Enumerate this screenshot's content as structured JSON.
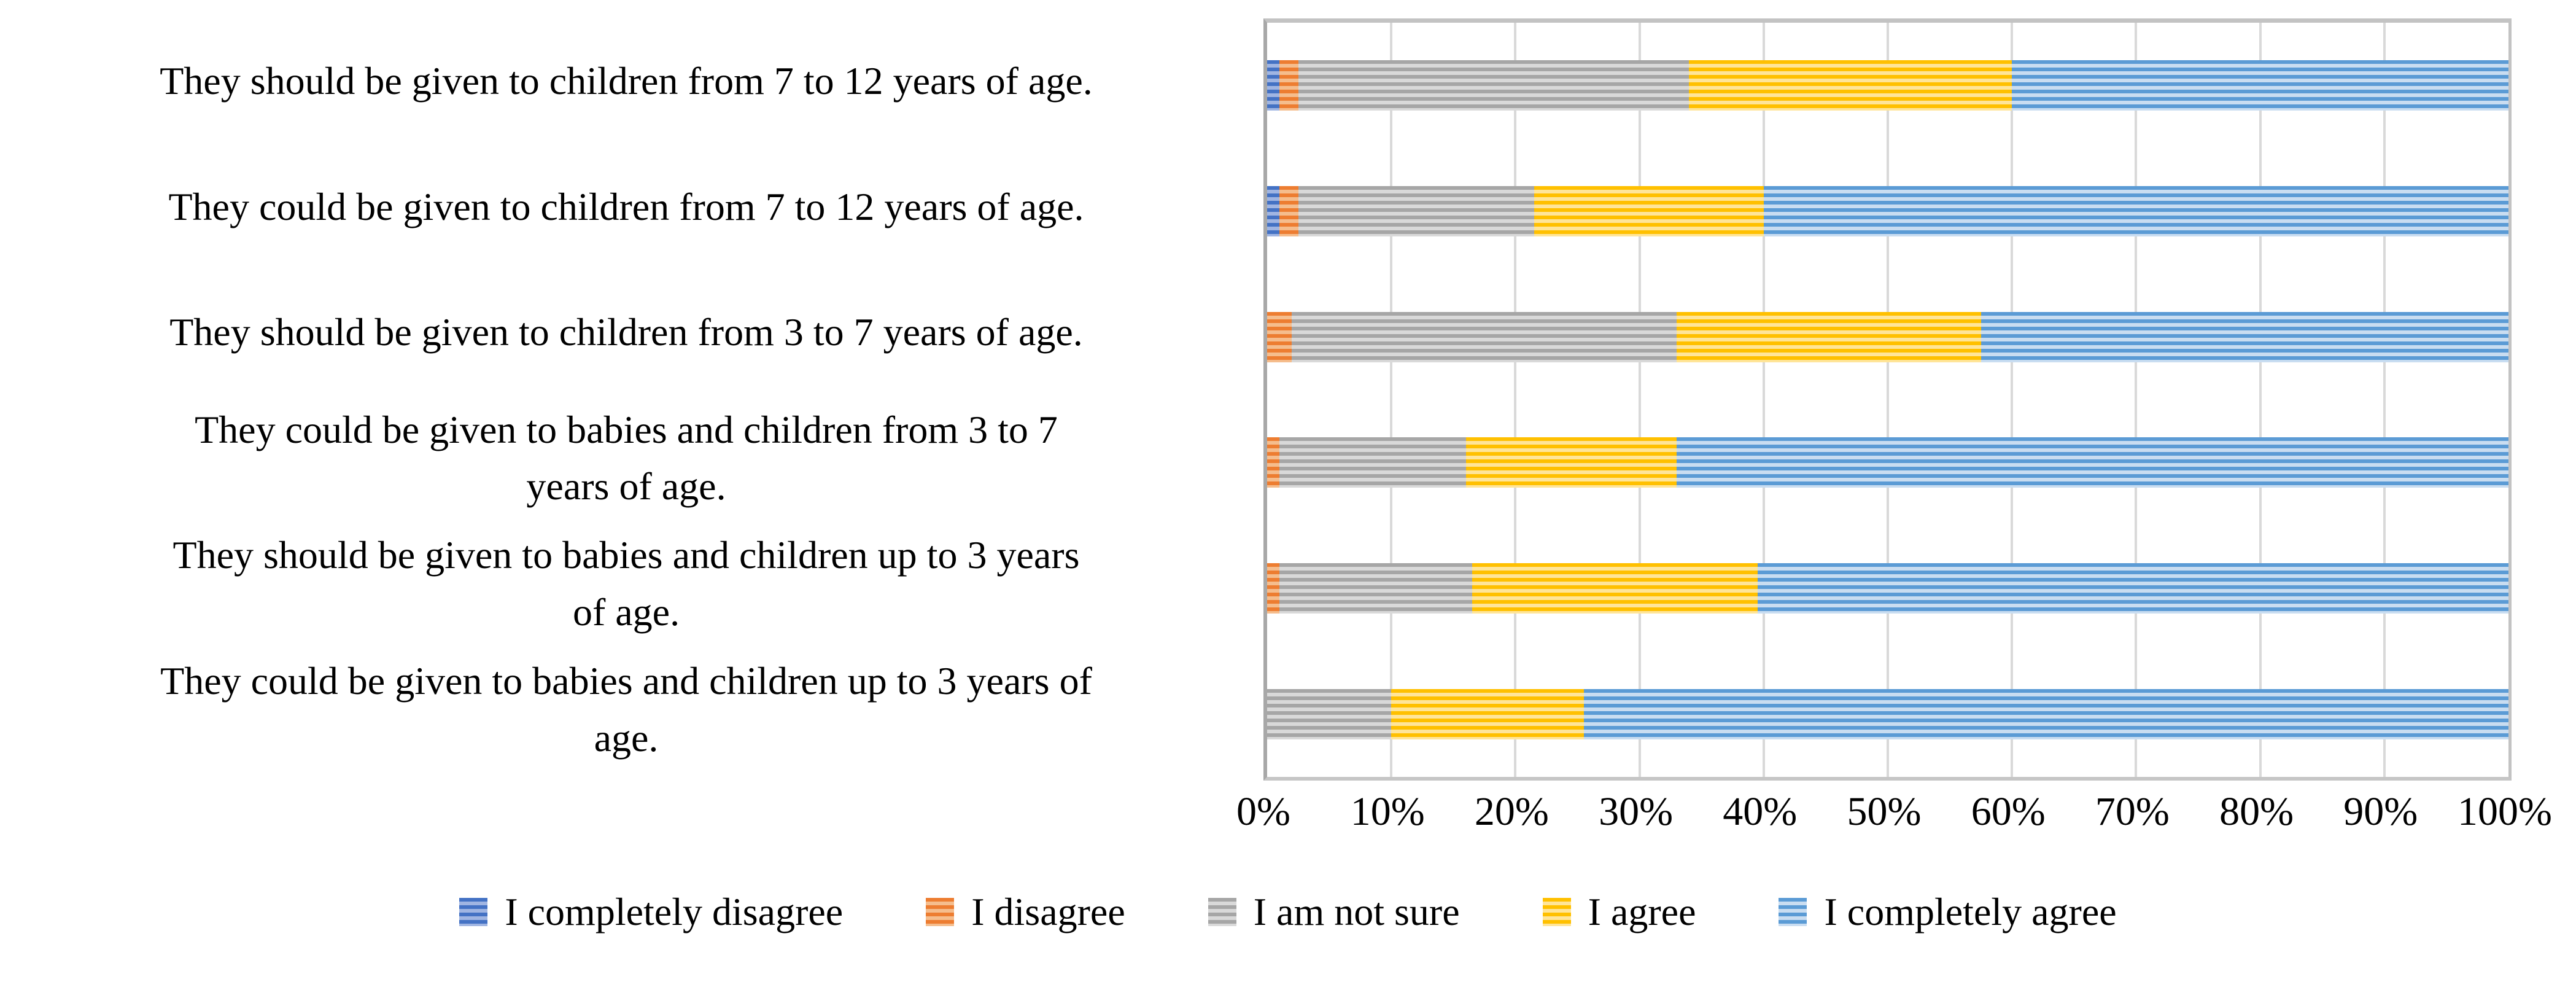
{
  "chart_data": {
    "type": "bar",
    "orientation": "horizontal",
    "stacked": true,
    "stacked_to": 100,
    "title": "",
    "xlabel": "",
    "ylabel": "",
    "xlim": [
      0,
      100
    ],
    "grid": true,
    "legend_position": "bottom",
    "x_tick_labels": [
      "0%",
      "10%",
      "20%",
      "30%",
      "40%",
      "50%",
      "60%",
      "70%",
      "80%",
      "90%",
      "100%"
    ],
    "categories": [
      "They should be given to children from 7 to 12 years of age.",
      "They could be given to children from 7 to 12 years of age.",
      "They should be given to children from 3 to 7 years of age.",
      "They could be given to babies and children from 3 to 7 years of age.",
      "They should be given to babies and children up to 3 years of age.",
      "They could be given to babies and children up to 3 years of age."
    ],
    "category_display_lines": [
      "They should be given to children from 7 to 12 years of age.",
      "They could be given to children from 7 to 12 years of age.",
      "They should be given to children from 3 to 7 years of age.",
      "They could be given to babies and children from 3 to 7\nyears of age.",
      "They should be given to babies and children up to 3 years\nof age.",
      "They could be given to babies and children up to 3 years of\nage."
    ],
    "series": [
      {
        "name": "I completely disagree",
        "color": "#4472C4",
        "color_light": "#A0B5E2",
        "values": [
          1,
          1,
          0,
          0,
          0,
          0
        ]
      },
      {
        "name": "I disagree",
        "color": "#ED7D31",
        "color_light": "#F5BD8D",
        "values": [
          1.5,
          1.5,
          2,
          1,
          1,
          0
        ]
      },
      {
        "name": "I am not sure",
        "color": "#A6A6A6",
        "color_light": "#D9D9D9",
        "values": [
          31.5,
          19,
          31,
          15,
          15.5,
          10
        ]
      },
      {
        "name": "I agree",
        "color": "#FFC000",
        "color_light": "#FFE599",
        "values": [
          26,
          18.5,
          24.5,
          17,
          23,
          15.5
        ]
      },
      {
        "name": "I completely agree",
        "color": "#5B9BD5",
        "color_light": "#C9DDF1",
        "values": [
          40,
          60,
          42.5,
          67,
          60.5,
          74.5
        ]
      }
    ],
    "bar_texture": "horizontal-stripes",
    "gridline_color": "#d9d9d9",
    "axis_line_color": "#a8a8a8",
    "plot_border_color": "#c3c3c3",
    "text_color": "#000000"
  }
}
